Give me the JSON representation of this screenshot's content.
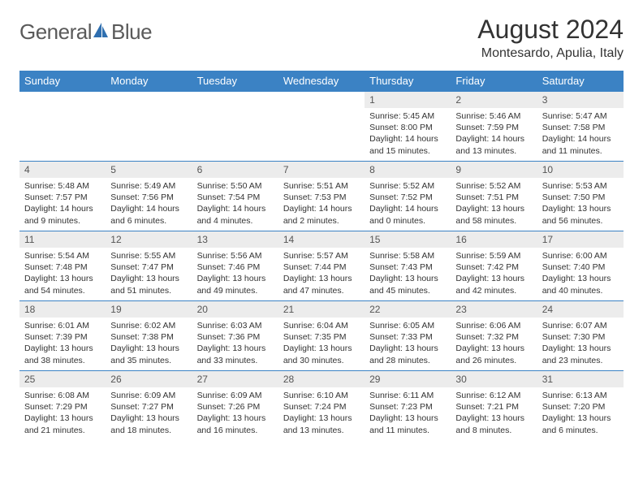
{
  "logo": {
    "word1": "General",
    "word2": "Blue"
  },
  "title": "August 2024",
  "location": "Montesardo, Apulia, Italy",
  "colors": {
    "header_bg": "#3b82c4",
    "header_text": "#ffffff",
    "daynum_bg": "#ececec",
    "border": "#3b82c4",
    "logo_icon": "#2f6fb0",
    "logo_text": "#5a5a5a",
    "body_text": "#333333"
  },
  "typography": {
    "month_title_fontsize": 32,
    "location_fontsize": 16,
    "th_fontsize": 13,
    "daynum_fontsize": 12,
    "body_fontsize": 10.5
  },
  "weekdays": [
    "Sunday",
    "Monday",
    "Tuesday",
    "Wednesday",
    "Thursday",
    "Friday",
    "Saturday"
  ],
  "weeks": [
    [
      {
        "n": "",
        "sr": "",
        "ss": "",
        "dl": ""
      },
      {
        "n": "",
        "sr": "",
        "ss": "",
        "dl": ""
      },
      {
        "n": "",
        "sr": "",
        "ss": "",
        "dl": ""
      },
      {
        "n": "",
        "sr": "",
        "ss": "",
        "dl": ""
      },
      {
        "n": "1",
        "sr": "Sunrise: 5:45 AM",
        "ss": "Sunset: 8:00 PM",
        "dl": "Daylight: 14 hours and 15 minutes."
      },
      {
        "n": "2",
        "sr": "Sunrise: 5:46 AM",
        "ss": "Sunset: 7:59 PM",
        "dl": "Daylight: 14 hours and 13 minutes."
      },
      {
        "n": "3",
        "sr": "Sunrise: 5:47 AM",
        "ss": "Sunset: 7:58 PM",
        "dl": "Daylight: 14 hours and 11 minutes."
      }
    ],
    [
      {
        "n": "4",
        "sr": "Sunrise: 5:48 AM",
        "ss": "Sunset: 7:57 PM",
        "dl": "Daylight: 14 hours and 9 minutes."
      },
      {
        "n": "5",
        "sr": "Sunrise: 5:49 AM",
        "ss": "Sunset: 7:56 PM",
        "dl": "Daylight: 14 hours and 6 minutes."
      },
      {
        "n": "6",
        "sr": "Sunrise: 5:50 AM",
        "ss": "Sunset: 7:54 PM",
        "dl": "Daylight: 14 hours and 4 minutes."
      },
      {
        "n": "7",
        "sr": "Sunrise: 5:51 AM",
        "ss": "Sunset: 7:53 PM",
        "dl": "Daylight: 14 hours and 2 minutes."
      },
      {
        "n": "8",
        "sr": "Sunrise: 5:52 AM",
        "ss": "Sunset: 7:52 PM",
        "dl": "Daylight: 14 hours and 0 minutes."
      },
      {
        "n": "9",
        "sr": "Sunrise: 5:52 AM",
        "ss": "Sunset: 7:51 PM",
        "dl": "Daylight: 13 hours and 58 minutes."
      },
      {
        "n": "10",
        "sr": "Sunrise: 5:53 AM",
        "ss": "Sunset: 7:50 PM",
        "dl": "Daylight: 13 hours and 56 minutes."
      }
    ],
    [
      {
        "n": "11",
        "sr": "Sunrise: 5:54 AM",
        "ss": "Sunset: 7:48 PM",
        "dl": "Daylight: 13 hours and 54 minutes."
      },
      {
        "n": "12",
        "sr": "Sunrise: 5:55 AM",
        "ss": "Sunset: 7:47 PM",
        "dl": "Daylight: 13 hours and 51 minutes."
      },
      {
        "n": "13",
        "sr": "Sunrise: 5:56 AM",
        "ss": "Sunset: 7:46 PM",
        "dl": "Daylight: 13 hours and 49 minutes."
      },
      {
        "n": "14",
        "sr": "Sunrise: 5:57 AM",
        "ss": "Sunset: 7:44 PM",
        "dl": "Daylight: 13 hours and 47 minutes."
      },
      {
        "n": "15",
        "sr": "Sunrise: 5:58 AM",
        "ss": "Sunset: 7:43 PM",
        "dl": "Daylight: 13 hours and 45 minutes."
      },
      {
        "n": "16",
        "sr": "Sunrise: 5:59 AM",
        "ss": "Sunset: 7:42 PM",
        "dl": "Daylight: 13 hours and 42 minutes."
      },
      {
        "n": "17",
        "sr": "Sunrise: 6:00 AM",
        "ss": "Sunset: 7:40 PM",
        "dl": "Daylight: 13 hours and 40 minutes."
      }
    ],
    [
      {
        "n": "18",
        "sr": "Sunrise: 6:01 AM",
        "ss": "Sunset: 7:39 PM",
        "dl": "Daylight: 13 hours and 38 minutes."
      },
      {
        "n": "19",
        "sr": "Sunrise: 6:02 AM",
        "ss": "Sunset: 7:38 PM",
        "dl": "Daylight: 13 hours and 35 minutes."
      },
      {
        "n": "20",
        "sr": "Sunrise: 6:03 AM",
        "ss": "Sunset: 7:36 PM",
        "dl": "Daylight: 13 hours and 33 minutes."
      },
      {
        "n": "21",
        "sr": "Sunrise: 6:04 AM",
        "ss": "Sunset: 7:35 PM",
        "dl": "Daylight: 13 hours and 30 minutes."
      },
      {
        "n": "22",
        "sr": "Sunrise: 6:05 AM",
        "ss": "Sunset: 7:33 PM",
        "dl": "Daylight: 13 hours and 28 minutes."
      },
      {
        "n": "23",
        "sr": "Sunrise: 6:06 AM",
        "ss": "Sunset: 7:32 PM",
        "dl": "Daylight: 13 hours and 26 minutes."
      },
      {
        "n": "24",
        "sr": "Sunrise: 6:07 AM",
        "ss": "Sunset: 7:30 PM",
        "dl": "Daylight: 13 hours and 23 minutes."
      }
    ],
    [
      {
        "n": "25",
        "sr": "Sunrise: 6:08 AM",
        "ss": "Sunset: 7:29 PM",
        "dl": "Daylight: 13 hours and 21 minutes."
      },
      {
        "n": "26",
        "sr": "Sunrise: 6:09 AM",
        "ss": "Sunset: 7:27 PM",
        "dl": "Daylight: 13 hours and 18 minutes."
      },
      {
        "n": "27",
        "sr": "Sunrise: 6:09 AM",
        "ss": "Sunset: 7:26 PM",
        "dl": "Daylight: 13 hours and 16 minutes."
      },
      {
        "n": "28",
        "sr": "Sunrise: 6:10 AM",
        "ss": "Sunset: 7:24 PM",
        "dl": "Daylight: 13 hours and 13 minutes."
      },
      {
        "n": "29",
        "sr": "Sunrise: 6:11 AM",
        "ss": "Sunset: 7:23 PM",
        "dl": "Daylight: 13 hours and 11 minutes."
      },
      {
        "n": "30",
        "sr": "Sunrise: 6:12 AM",
        "ss": "Sunset: 7:21 PM",
        "dl": "Daylight: 13 hours and 8 minutes."
      },
      {
        "n": "31",
        "sr": "Sunrise: 6:13 AM",
        "ss": "Sunset: 7:20 PM",
        "dl": "Daylight: 13 hours and 6 minutes."
      }
    ]
  ]
}
